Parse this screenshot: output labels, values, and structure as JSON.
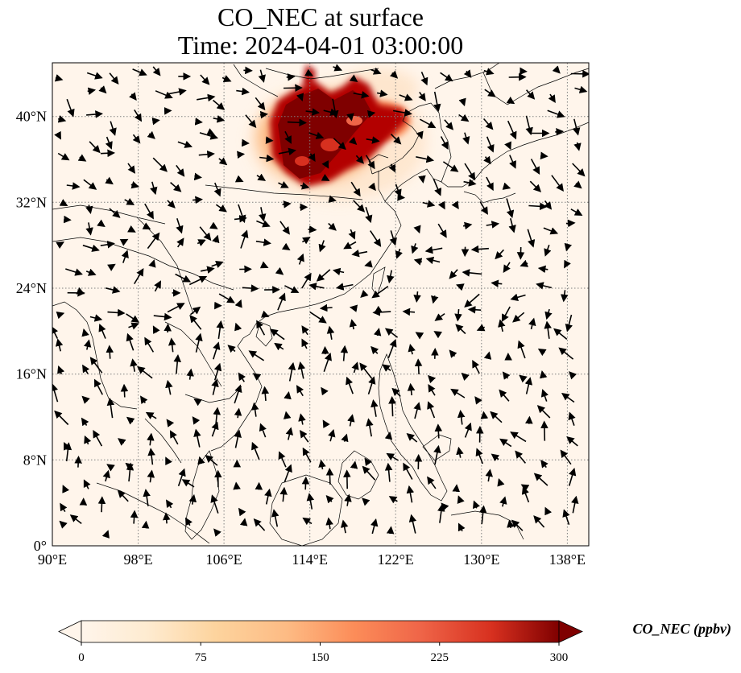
{
  "title": {
    "line1": "CO_NEC at surface",
    "line2": "Time: 2024-04-01 03:00:00"
  },
  "map": {
    "lon_range": [
      90,
      140
    ],
    "lat_range": [
      0,
      45
    ],
    "x_ticks": [
      "90°E",
      "98°E",
      "106°E",
      "114°E",
      "122°E",
      "130°E",
      "138°E"
    ],
    "x_tick_values": [
      90,
      98,
      106,
      114,
      122,
      130,
      138
    ],
    "y_ticks": [
      "0°",
      "8°N",
      "16°N",
      "24°N",
      "32°N",
      "40°N"
    ],
    "y_tick_values": [
      0,
      8,
      16,
      24,
      32,
      40
    ],
    "gridlines": true,
    "field_color_background": "#fff5eb",
    "field_color_high": "#7f0000",
    "vectors": "wind arrows"
  },
  "colorbar": {
    "label": "CO_NEC (ppbv)",
    "ticks": [
      "0",
      "75",
      "150",
      "225",
      "300"
    ],
    "tick_values": [
      0,
      75,
      150,
      225,
      300
    ],
    "vmin": 0,
    "vmax": 300,
    "colormap": [
      "#fff5eb",
      "#fdd49e",
      "#fdbb84",
      "#fc8d59",
      "#ef6548",
      "#d7301f",
      "#b30000",
      "#7f0000"
    ],
    "extend": "both"
  }
}
